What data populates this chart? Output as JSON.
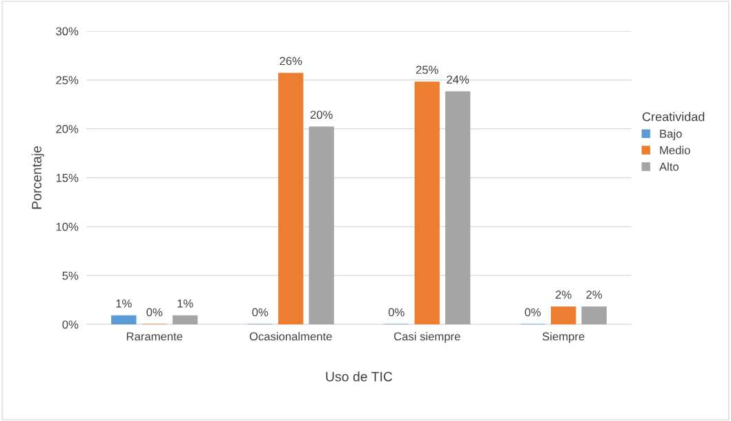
{
  "chart_data": {
    "type": "bar",
    "xlabel": "Uso de TIC",
    "ylabel": "Porcentaje",
    "legend_title": "Creatividad",
    "legend": "right",
    "categories": [
      "Raramente",
      "Ocasionalmente",
      "Casi siempre",
      "Siempre"
    ],
    "series": [
      {
        "name": "Bajo",
        "color": "#5b9bd5",
        "values": [
          0.9,
          0,
          0,
          0
        ],
        "value_labels": [
          "1%",
          "0%",
          "0%",
          "0%"
        ]
      },
      {
        "name": "Medio",
        "color": "#ed7d31",
        "values": [
          0,
          25.7,
          24.8,
          1.8
        ],
        "value_labels": [
          "0%",
          "26%",
          "25%",
          "2%"
        ]
      },
      {
        "name": "Alto",
        "color": "#a5a5a5",
        "values": [
          0.9,
          20.2,
          23.8,
          1.8
        ],
        "value_labels": [
          "1%",
          "20%",
          "24%",
          "2%"
        ]
      }
    ],
    "ylim": [
      0,
      30
    ],
    "yticks": [
      {
        "value": 0,
        "label": "0%"
      },
      {
        "value": 5,
        "label": "5%"
      },
      {
        "value": 10,
        "label": "10%"
      },
      {
        "value": 15,
        "label": "15%"
      },
      {
        "value": 20,
        "label": "20%"
      },
      {
        "value": 25,
        "label": "25%"
      },
      {
        "value": 30,
        "label": "30%"
      }
    ],
    "grid": "y"
  }
}
